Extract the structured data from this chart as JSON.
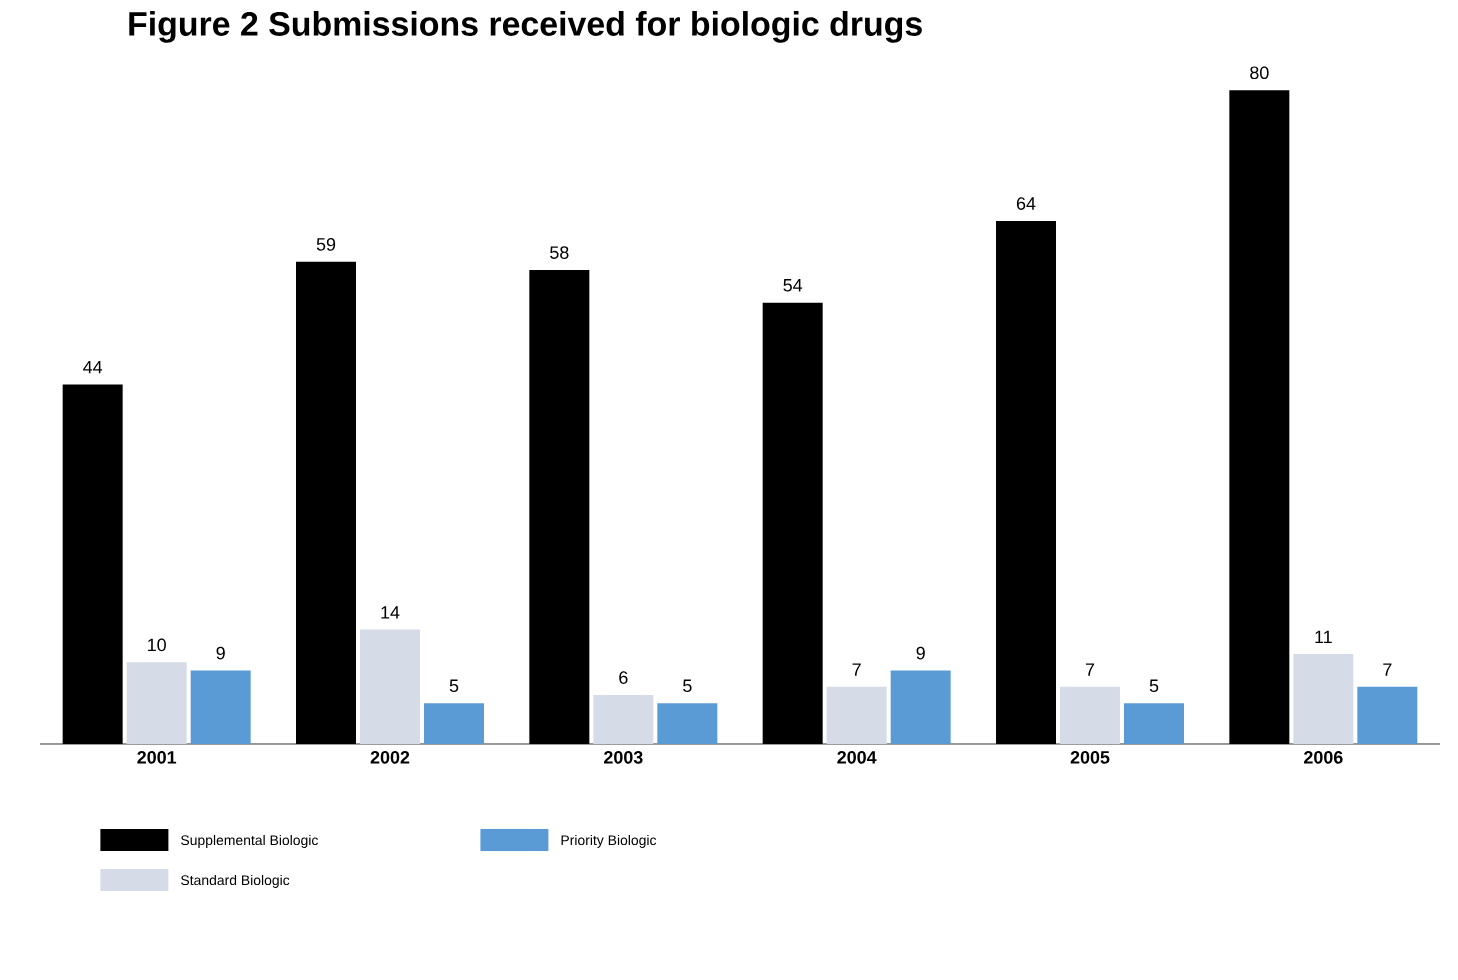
{
  "chart_data": {
    "type": "bar",
    "title": "Figure 2 Submissions received for biologic drugs",
    "categories": [
      "2001",
      "2002",
      "2003",
      "2004",
      "2005",
      "2006"
    ],
    "series": [
      {
        "name": "Supplemental Biologic",
        "color": "#000000",
        "values": [
          44,
          59,
          58,
          54,
          64,
          80
        ]
      },
      {
        "name": "Standard Biologic",
        "color": "#d5dce8",
        "values": [
          10,
          14,
          6,
          7,
          7,
          11
        ]
      },
      {
        "name": "Priority Biologic",
        "color": "#5b9bd5",
        "values": [
          9,
          5,
          5,
          9,
          5,
          7
        ]
      }
    ],
    "data_labels": true,
    "legend": "bottom"
  }
}
